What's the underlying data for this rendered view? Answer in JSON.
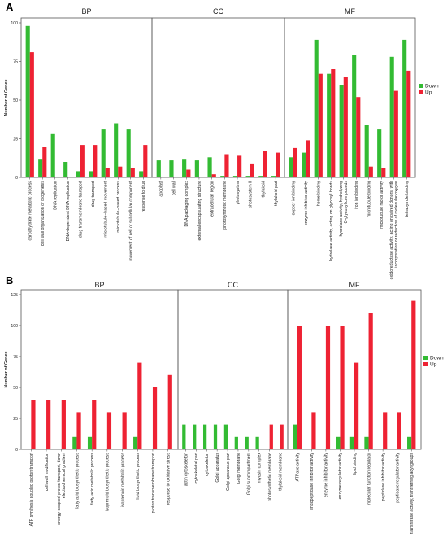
{
  "colors": {
    "down": "#33bb33",
    "up": "#ee2233",
    "frame": "#555555",
    "axis": "#444444"
  },
  "chart_data": [
    {
      "panel": "A",
      "type": "bar",
      "ylabel": "Number of Genes",
      "ylim": [
        0,
        100
      ],
      "yticks": [
        0,
        25,
        50,
        75,
        100
      ],
      "legend": {
        "position": "right",
        "entries": [
          "Down",
          "Up"
        ]
      },
      "facets": [
        {
          "title": "BP",
          "categories": [
            "carbohydrate metabolic process",
            "cell wall organization or biogenesis",
            "DNA replication",
            "DNA-dependent DNA replication",
            "drug transmembrane transport",
            "drug transport",
            "microtubule−based movement",
            "microtubule−based process",
            "movement of cell or subcellular component",
            "response to drug"
          ],
          "series": [
            {
              "name": "Down",
              "values": [
                98,
                12,
                28,
                10,
                4,
                4,
                31,
                35,
                31,
                4
              ]
            },
            {
              "name": "Up",
              "values": [
                81,
                20,
                0,
                0,
                21,
                21,
                6,
                7,
                6,
                21
              ]
            }
          ]
        },
        {
          "title": "CC",
          "categories": [
            "apoplast",
            "cell wall",
            "DNA packaging complex",
            "external encapsulating structure",
            "extracellular region",
            "photosynthetic membrane",
            "photosystem",
            "photosystem II",
            "thylakoid",
            "thylakoid part"
          ],
          "series": [
            {
              "name": "Down",
              "values": [
                11,
                11,
                12,
                11,
                13,
                1,
                1,
                1,
                1,
                1
              ]
            },
            {
              "name": "Up",
              "values": [
                0,
                0,
                5,
                0,
                2,
                15,
                14,
                9,
                17,
                16
              ]
            }
          ]
        },
        {
          "title": "MF",
          "categories": [
            "copper ion binding",
            "enzyme inhibitor activity",
            "heme binding",
            "hydrolase activity, acting on glycosyl bonds",
            "hydrolase activity, hydrolyzing O-glycosyl compounds",
            "iron ion binding",
            "microtubule binding",
            "microtubule motor activity",
            "oxidoreductase activity, acting on paired donors, with incorporation or reduction of molecular oxygen",
            "tetrapyrrole binding"
          ],
          "series": [
            {
              "name": "Down",
              "values": [
                13,
                16,
                89,
                67,
                60,
                79,
                34,
                31,
                78,
                89
              ]
            },
            {
              "name": "Up",
              "values": [
                19,
                24,
                67,
                70,
                65,
                52,
                7,
                6,
                56,
                69
              ]
            }
          ]
        }
      ]
    },
    {
      "panel": "B",
      "type": "bar",
      "ylabel": "Number of Genes",
      "ylim": [
        0,
        125
      ],
      "yticks": [
        0,
        25,
        50,
        75,
        100,
        125
      ],
      "legend": {
        "position": "right",
        "entries": [
          "Down",
          "Up"
        ]
      },
      "facets": [
        {
          "title": "BP",
          "categories": [
            "ATP synthesis coupled proton transport",
            "cell wall modification",
            "energy coupled proton transport, down electrochemical gradient",
            "fatty acid biosynthetic process",
            "fatty acid metabolic process",
            "isoprenoid biosynthetic process",
            "isoprenoid metabolic process",
            "lipid biosynthetic process",
            "proton transmembrane transport",
            "response to oxidative stress"
          ],
          "series": [
            {
              "name": "Down",
              "values": [
                0,
                0,
                0,
                10,
                10,
                0,
                0,
                10,
                0,
                0
              ]
            },
            {
              "name": "Up",
              "values": [
                40,
                40,
                40,
                30,
                40,
                30,
                30,
                70,
                50,
                60
              ]
            }
          ]
        },
        {
          "title": "CC",
          "categories": [
            "actin cytoskeleton",
            "cytoskeletal part",
            "cytoskeleton",
            "Golgi apparatus",
            "Golgi apparatus part",
            "Golgi membrane",
            "Golgi subcompartment",
            "myosin complex",
            "photosynthetic membrane",
            "thylakoid membrane"
          ],
          "series": [
            {
              "name": "Down",
              "values": [
                20,
                20,
                20,
                20,
                20,
                10,
                10,
                10,
                0,
                0
              ]
            },
            {
              "name": "Up",
              "values": [
                0,
                0,
                0,
                0,
                0,
                0,
                0,
                0,
                20,
                20
              ]
            }
          ]
        },
        {
          "title": "MF",
          "categories": [
            "ATPase activity",
            "endopeptidase inhibitor activity",
            "enzyme inhibitor activity",
            "enzyme regulator activity",
            "lipid binding",
            "molecular function regulator",
            "peptidase inhibitor activity",
            "peptidase regulator activity",
            "transferase activity, transferring acyl groups"
          ],
          "series": [
            {
              "name": "Down",
              "values": [
                20,
                0,
                0,
                10,
                10,
                10,
                0,
                0,
                10
              ]
            },
            {
              "name": "Up",
              "values": [
                100,
                30,
                100,
                100,
                70,
                110,
                30,
                30,
                120
              ]
            }
          ]
        }
      ]
    }
  ]
}
